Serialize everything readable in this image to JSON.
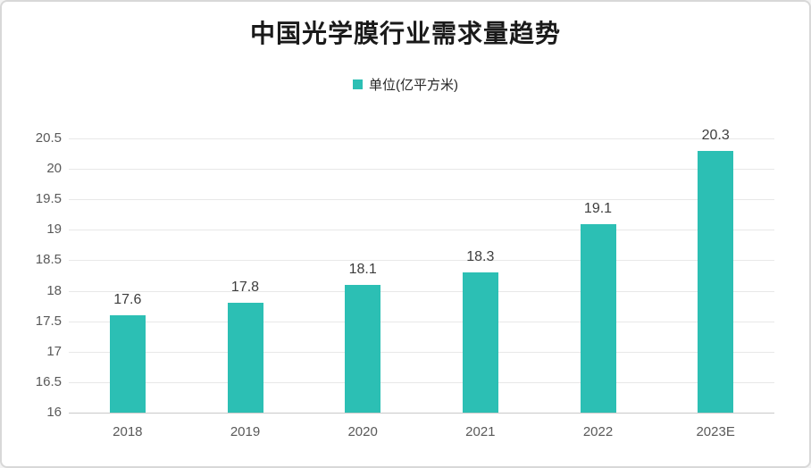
{
  "chart": {
    "title": "中国光学膜行业需求量趋势",
    "legend": {
      "label": "单位(亿平方米)",
      "marker_color": "#2cbfb4"
    }
  },
  "chart_data": {
    "type": "bar",
    "title": "中国光学膜行业需求量趋势",
    "categories": [
      "2018",
      "2019",
      "2020",
      "2021",
      "2022",
      "2023E"
    ],
    "values": [
      17.6,
      17.8,
      18.1,
      18.3,
      19.1,
      20.3
    ],
    "series_name": "单位(亿平方米)",
    "xlabel": "",
    "ylabel": "",
    "ylim": [
      16,
      20.5
    ],
    "ytick_step": 0.5,
    "ytick_labels": [
      "16",
      "16.5",
      "17",
      "17.5",
      "18",
      "18.5",
      "19",
      "19.5",
      "20",
      "20.5"
    ],
    "data_labels_shown": true,
    "grid": true,
    "legend_position": "top",
    "bar_color": "#2cbfb4",
    "gridline_color": "#e8e8e8",
    "axis_line_color": "#c9c9c9",
    "tick_label_color": "#595959",
    "data_label_color": "#3d3d3d"
  }
}
